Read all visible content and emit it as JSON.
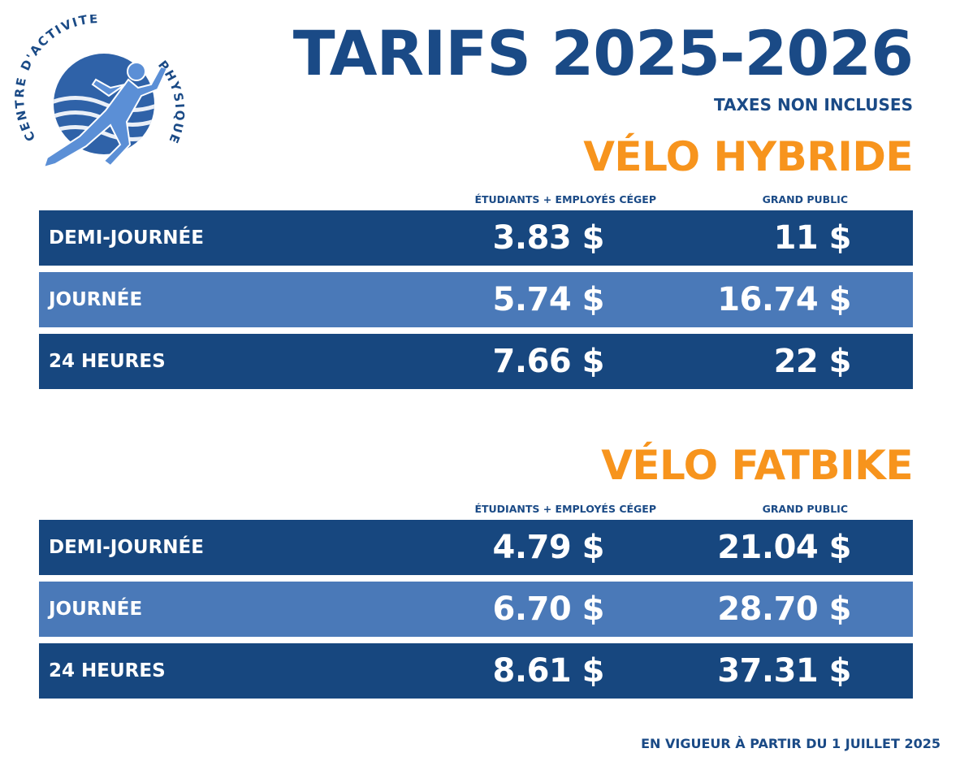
{
  "logo": {
    "arc_text_left": "CENTRE D'ACTIVITÉ",
    "arc_text_right": "PHYSIQUE",
    "brand_color": "#1a4a86"
  },
  "header": {
    "title": "TARIFS 2025-2026",
    "subtitle": "TAXES NON INCLUSES"
  },
  "sections": [
    {
      "title": "VÉLO HYBRIDE",
      "col1_header": "ÉTUDIANTS + EMPLOYÉS CÉGEP",
      "col2_header": "GRAND PUBLIC",
      "rows": [
        {
          "label": "DEMI-JOURNÉE",
          "price1": "3.83 $",
          "price2": "11 $"
        },
        {
          "label": "JOURNÉE",
          "price1": "5.74 $",
          "price2": "16.74 $"
        },
        {
          "label": "24 HEURES",
          "price1": "7.66 $",
          "price2": "22 $"
        }
      ]
    },
    {
      "title": "VÉLO FATBIKE",
      "col1_header": "ÉTUDIANTS + EMPLOYÉS CÉGEP",
      "col2_header": "GRAND PUBLIC",
      "rows": [
        {
          "label": "DEMI-JOURNÉE",
          "price1": "4.79 $",
          "price2": "21.04 $"
        },
        {
          "label": "JOURNÉE",
          "price1": "6.70 $",
          "price2": "28.70 $"
        },
        {
          "label": "24 HEURES",
          "price1": "8.61 $",
          "price2": "37.31 $"
        }
      ]
    }
  ],
  "colors": {
    "navy": "#1a4a86",
    "row_dark": "#17477f",
    "row_light": "#4a79b8",
    "orange": "#f7941d"
  },
  "footer": {
    "text": "EN VIGUEUR À PARTIR DU 1 JUILLET 2025"
  }
}
